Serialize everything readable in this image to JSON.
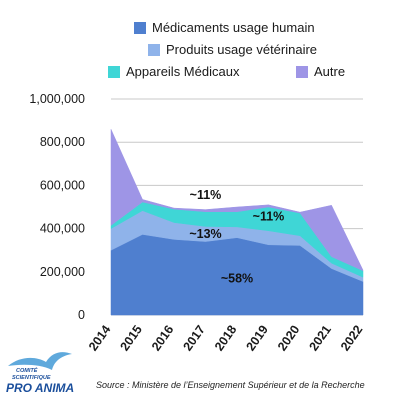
{
  "chart_data": {
    "type": "area",
    "stacked": true,
    "x": [
      "2014",
      "2015",
      "2016",
      "2017",
      "2018",
      "2019",
      "2020",
      "2021",
      "2022"
    ],
    "series": [
      {
        "name": "Médicaments usage humain",
        "color": "#4f7fcf",
        "values": [
          300000,
          373000,
          350000,
          340000,
          358000,
          325000,
          322000,
          215000,
          155000
        ]
      },
      {
        "name": "Produits usage vétérinaire",
        "color": "#8fb3ea",
        "values": [
          100000,
          110000,
          78000,
          70000,
          50000,
          65000,
          45000,
          25000,
          20000
        ]
      },
      {
        "name": "Appareils Médicaux",
        "color": "#3fd6d6",
        "values": [
          15000,
          40000,
          62000,
          68000,
          70000,
          110000,
          105000,
          30000,
          30000
        ]
      },
      {
        "name": "Autre",
        "color": "#9e95e6",
        "values": [
          445000,
          12000,
          5000,
          10000,
          22000,
          10000,
          4000,
          238000,
          3000
        ]
      }
    ],
    "ylim": [
      0,
      1000000
    ],
    "yticks": [
      "0",
      "200,000",
      "400,000",
      "600,000",
      "800,000",
      "1,000,000"
    ],
    "ytick_values": [
      0,
      200000,
      400000,
      600000,
      800000,
      1000000
    ],
    "grid": true,
    "legend_position": "top",
    "annotations": [
      {
        "text": "~11%",
        "x": "2017",
        "y": 555000
      },
      {
        "text": "~11%",
        "x": "2019",
        "y": 455000
      },
      {
        "text": "~13%",
        "x": "2017",
        "y": 375000
      },
      {
        "text": "~58%",
        "x": "2018",
        "y": 170000
      }
    ]
  },
  "footer": {
    "source": "Source : Ministère de l’Enseignement Supérieur et de la Recherche",
    "logo_line1": "COMITÉ",
    "logo_line2": "SCIENTIFIQUE",
    "logo_main": "PRO ANIMA"
  }
}
